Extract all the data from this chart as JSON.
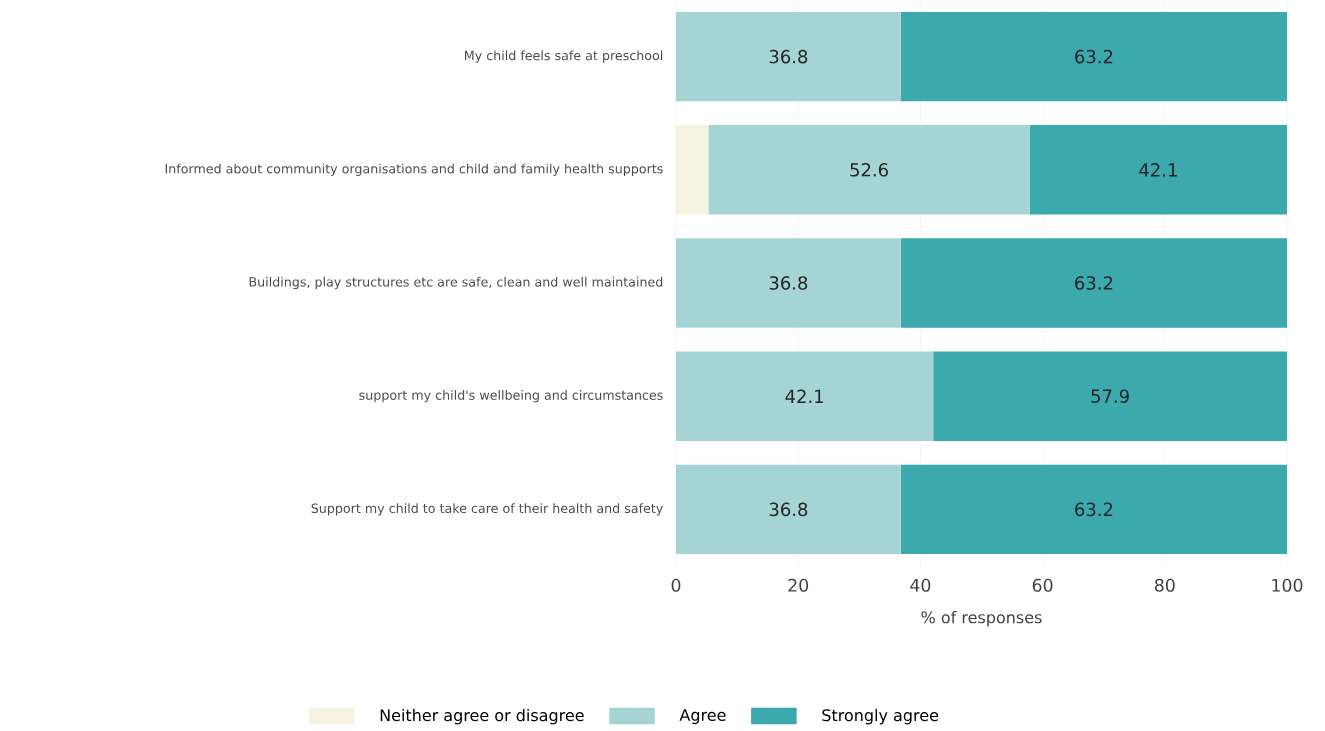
{
  "chart_data": {
    "type": "bar",
    "orientation": "horizontal",
    "stacked": true,
    "categories": [
      "My child feels safe at preschool",
      "Informed about community organisations and child and family health supports",
      "Buildings, play structures etc are safe, clean and well maintained",
      "support my child's wellbeing and circumstances",
      "Support my child to take care of their health and safety"
    ],
    "series": [
      {
        "name": "Neither agree or disagree",
        "color": "#f6f3e3",
        "values": [
          0,
          5.3,
          0,
          0,
          0
        ],
        "value_labels": [
          null,
          null,
          null,
          null,
          null
        ]
      },
      {
        "name": "Agree",
        "color": "#a5d4d4",
        "values": [
          36.8,
          52.6,
          36.8,
          42.1,
          36.8
        ],
        "value_labels": [
          "36.8",
          "52.6",
          "36.8",
          "42.1",
          "36.8"
        ]
      },
      {
        "name": "Strongly agree",
        "color": "#3ba9ad",
        "values": [
          63.2,
          42.1,
          63.2,
          57.9,
          63.2
        ],
        "value_labels": [
          "63.2",
          "42.1",
          "63.2",
          "57.9",
          "63.2"
        ]
      }
    ],
    "xlabel": "% of responses",
    "xlim": [
      0,
      100
    ],
    "xticks": [
      0,
      20,
      40,
      60,
      80,
      100
    ],
    "grid": "x",
    "legend": "bottom"
  }
}
